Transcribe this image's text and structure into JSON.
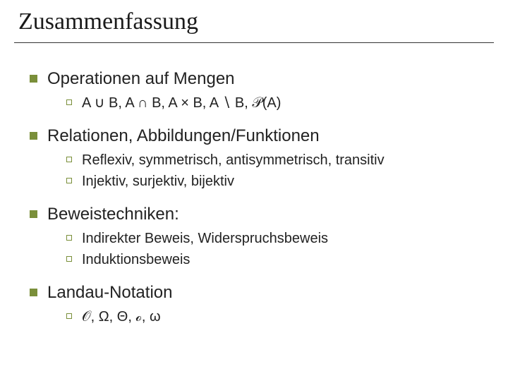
{
  "title": "Zusammenfassung",
  "colors": {
    "bullet": "#7a8f3a",
    "text": "#222222",
    "rule": "#333333",
    "background": "#ffffff"
  },
  "fonts": {
    "title_family": "Times New Roman",
    "body_family": "Arial",
    "title_size_pt": 34,
    "lvl1_size_pt": 24,
    "lvl2_size_pt": 20
  },
  "items": [
    {
      "label": "Operationen auf Mengen",
      "sub": [
        "A ∪ B, A ∩ B, A × B, A ∖ B, 𝒫(A)"
      ]
    },
    {
      "label": "Relationen, Abbildungen/Funktionen",
      "sub": [
        "Reflexiv, symmetrisch, antisymmetrisch, transitiv",
        "Injektiv, surjektiv, bijektiv"
      ]
    },
    {
      "label": "Beweistechniken:",
      "sub": [
        "Indirekter Beweis, Widerspruchsbeweis",
        "Induktionsbeweis"
      ]
    },
    {
      "label": "Landau-Notation",
      "sub": [
        "𝒪, Ω, Θ, ℴ, ω"
      ]
    }
  ]
}
